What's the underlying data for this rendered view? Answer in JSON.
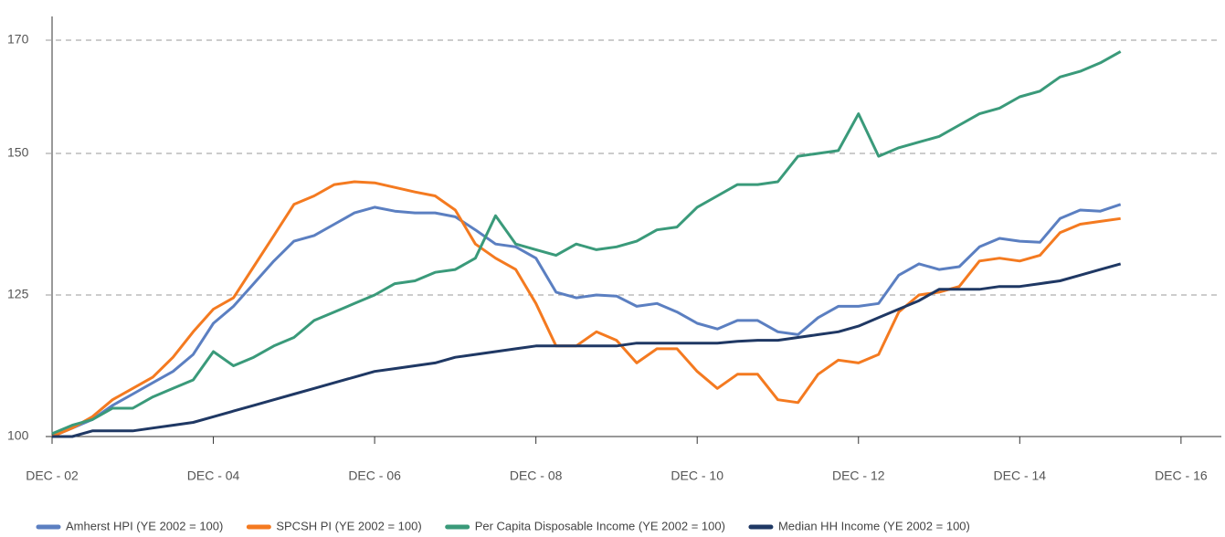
{
  "chart_data": {
    "type": "line",
    "x": [
      2002,
      2002.25,
      2002.5,
      2002.75,
      2003,
      2003.25,
      2003.5,
      2003.75,
      2004,
      2004.25,
      2004.5,
      2004.75,
      2005,
      2005.25,
      2005.5,
      2005.75,
      2006,
      2006.25,
      2006.5,
      2006.75,
      2007,
      2007.25,
      2007.5,
      2007.75,
      2008,
      2008.25,
      2008.5,
      2008.75,
      2009,
      2009.25,
      2009.5,
      2009.75,
      2010,
      2010.25,
      2010.5,
      2010.75,
      2011,
      2011.25,
      2011.5,
      2011.75,
      2012,
      2012.25,
      2012.5,
      2012.75,
      2013,
      2013.25,
      2013.5,
      2013.75,
      2014,
      2014.25,
      2014.5,
      2014.75,
      2015,
      2015.25
    ],
    "series": [
      {
        "name": "Amherst HPI (YE 2002 = 100)",
        "color": "#5b7fc1",
        "values": [
          100,
          101.5,
          103,
          105.5,
          107.5,
          109.5,
          111.5,
          114.5,
          120,
          123,
          127,
          131,
          134.5,
          135.5,
          137.5,
          139.5,
          140.5,
          139.8,
          139.5,
          139.5,
          138.8,
          136.5,
          134,
          133.5,
          131.5,
          125.5,
          124.5,
          125,
          124.8,
          123,
          123.5,
          122,
          120,
          119,
          120.5,
          120.5,
          118.5,
          118,
          121,
          123,
          123,
          123.5,
          128.5,
          130.5,
          129.5,
          130,
          133.5,
          135,
          134.5,
          134.3,
          138.5,
          140,
          139.8,
          141
        ]
      },
      {
        "name": "SPCSH PI (YE 2002 = 100)",
        "color": "#f47a20",
        "values": [
          100,
          101.5,
          103.5,
          106.5,
          108.5,
          110.5,
          114,
          118.5,
          122.5,
          124.5,
          130,
          135.5,
          141,
          142.5,
          144.5,
          145,
          144.8,
          144,
          143.2,
          142.5,
          140,
          134,
          131.5,
          129.5,
          123.5,
          116,
          116,
          118.5,
          117,
          113,
          115.5,
          115.5,
          111.5,
          108.5,
          111,
          111,
          106.5,
          106,
          111,
          113.5,
          113,
          114.5,
          122,
          125,
          125.5,
          126.5,
          131,
          131.5,
          131,
          132,
          136,
          137.5,
          138,
          138.5
        ]
      },
      {
        "name": "Per Capita Disposable Income (YE 2002 = 100)",
        "color": "#3a9a7a",
        "values": [
          100.5,
          102,
          103,
          105,
          105,
          107,
          108.5,
          110,
          115,
          112.5,
          114,
          116,
          117.5,
          120.5,
          122,
          123.5,
          125,
          127,
          127.5,
          129,
          129.5,
          131.5,
          139,
          134,
          133,
          132,
          134,
          133,
          133.5,
          134.5,
          136.5,
          137,
          140.5,
          142.5,
          144.5,
          144.5,
          145,
          149.5,
          150,
          150.5,
          157,
          149.5,
          151,
          152,
          153,
          155,
          157,
          158,
          160,
          161,
          163.5,
          164.5,
          166,
          168
        ]
      },
      {
        "name": "Median HH Income (YE 2002 = 100)",
        "color": "#1f3864",
        "values": [
          100,
          100,
          101,
          101,
          101,
          101.5,
          102,
          102.5,
          103.5,
          104.5,
          105.5,
          106.5,
          107.5,
          108.5,
          109.5,
          110.5,
          111.5,
          112,
          112.5,
          113,
          114,
          114.5,
          115,
          115.5,
          116,
          116,
          116,
          116,
          116,
          116.5,
          116.5,
          116.5,
          116.5,
          116.5,
          116.8,
          117,
          117,
          117.5,
          118,
          118.5,
          119.5,
          121,
          122.5,
          124,
          126,
          126,
          126,
          126.5,
          126.5,
          127,
          127.5,
          128.5,
          129.5,
          130.5
        ]
      }
    ],
    "xlim": [
      2002,
      2016.5
    ],
    "xticks": [
      {
        "value": 2002,
        "label": "DEC - 02"
      },
      {
        "value": 2004,
        "label": "DEC - 04"
      },
      {
        "value": 2006,
        "label": "DEC - 06"
      },
      {
        "value": 2008,
        "label": "DEC - 08"
      },
      {
        "value": 2010,
        "label": "DEC - 10"
      },
      {
        "value": 2012,
        "label": "DEC - 12"
      },
      {
        "value": 2014,
        "label": "DEC - 14"
      },
      {
        "value": 2016,
        "label": "DEC - 16"
      }
    ],
    "ylim": [
      100,
      175
    ],
    "yticks": [
      100,
      125,
      150,
      170
    ],
    "grid": true
  }
}
